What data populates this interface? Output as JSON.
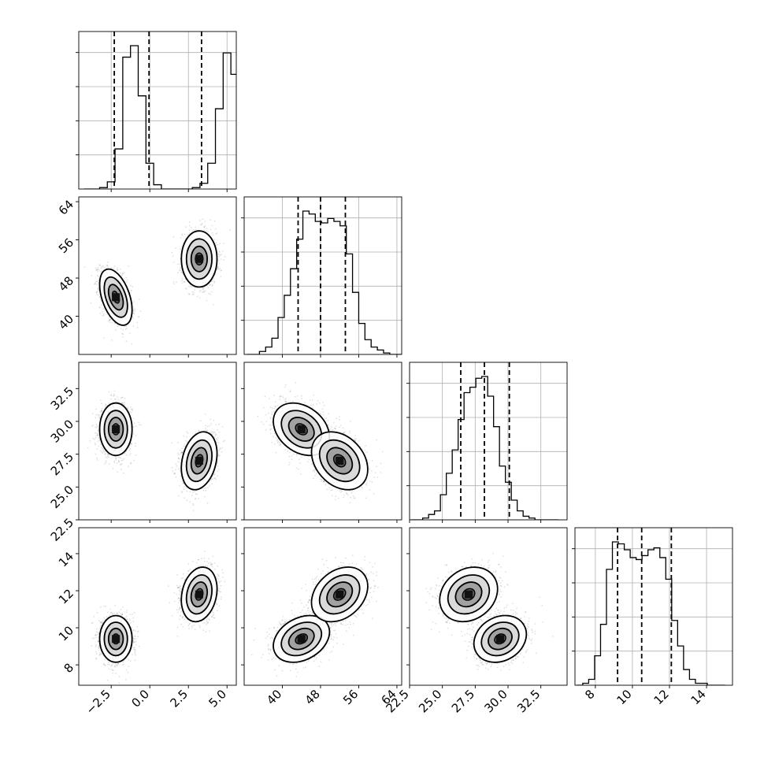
{
  "chart_data": {
    "type": "corner",
    "title": "",
    "parameters": [
      {
        "index": 0,
        "range": [
          -4.6,
          5.6
        ],
        "ticks": [
          -2.5,
          0.0,
          2.5,
          5.0
        ],
        "tick_labels": [
          "−2.5",
          "0.0",
          "2.5",
          "5.0"
        ],
        "quantiles": [
          -2.3,
          -0.05,
          3.35
        ]
      },
      {
        "index": 1,
        "range": [
          32,
          65
        ],
        "ticks": [
          40,
          48,
          56,
          64
        ],
        "tick_labels": [
          "40",
          "48",
          "56",
          "64"
        ],
        "quantiles": [
          43.3,
          48.0,
          53.2
        ]
      },
      {
        "index": 2,
        "range": [
          22.5,
          34.5
        ],
        "ticks": [
          22.5,
          25.0,
          27.5,
          30.0,
          32.5
        ],
        "tick_labels": [
          "22.5",
          "25.0",
          "27.5",
          "30.0",
          "32.5"
        ],
        "quantiles": [
          26.4,
          28.2,
          30.1
        ]
      },
      {
        "index": 3,
        "range": [
          6.9,
          15.4
        ],
        "ticks": [
          8,
          10,
          12,
          14
        ],
        "tick_labels": [
          "8",
          "10",
          "12",
          "14"
        ],
        "quantiles": [
          9.2,
          10.5,
          12.1
        ]
      }
    ],
    "histograms": [
      {
        "param": 0,
        "bin_width": 0.5,
        "bin_start": -4.25,
        "counts": [
          0,
          0,
          1,
          5,
          28,
          92,
          100,
          65,
          18,
          3,
          0,
          0,
          0,
          0,
          1,
          4,
          18,
          56,
          95,
          80,
          36,
          10,
          4,
          1,
          0
        ]
      },
      {
        "param": 1,
        "bin_width": 1.3,
        "bin_start": 32.6,
        "counts": [
          0,
          0,
          2,
          5,
          11,
          25,
          40,
          58,
          78,
          97,
          95,
          90,
          89,
          92,
          90,
          87,
          68,
          42,
          21,
          10,
          5,
          3,
          1,
          0,
          0
        ]
      },
      {
        "param": 2,
        "bin_width": 0.45,
        "bin_start": 22.6,
        "counts": [
          0,
          0,
          1,
          3,
          5,
          14,
          26,
          39,
          56,
          71,
          74,
          79,
          80,
          69,
          52,
          30,
          21,
          11,
          5,
          2,
          1,
          0,
          0,
          0,
          0
        ]
      },
      {
        "param": 3,
        "bin_width": 0.32,
        "bin_start": 7.0,
        "counts": [
          0,
          1,
          3,
          15,
          31,
          59,
          73,
          72,
          69,
          65,
          64,
          66,
          69,
          70,
          65,
          54,
          33,
          20,
          8,
          3,
          1,
          1,
          0,
          0,
          0
        ]
      }
    ],
    "modes": [
      {
        "mean": [
          -2.2,
          44.0,
          29.4,
          9.4
        ],
        "sd": [
          0.5,
          2.8,
          0.95,
          0.6
        ]
      },
      {
        "mean": [
          3.2,
          52.0,
          27.0,
          11.8
        ],
        "sd": [
          0.55,
          2.8,
          1.05,
          0.7
        ]
      }
    ],
    "contour_levels": 3,
    "grid": true
  }
}
